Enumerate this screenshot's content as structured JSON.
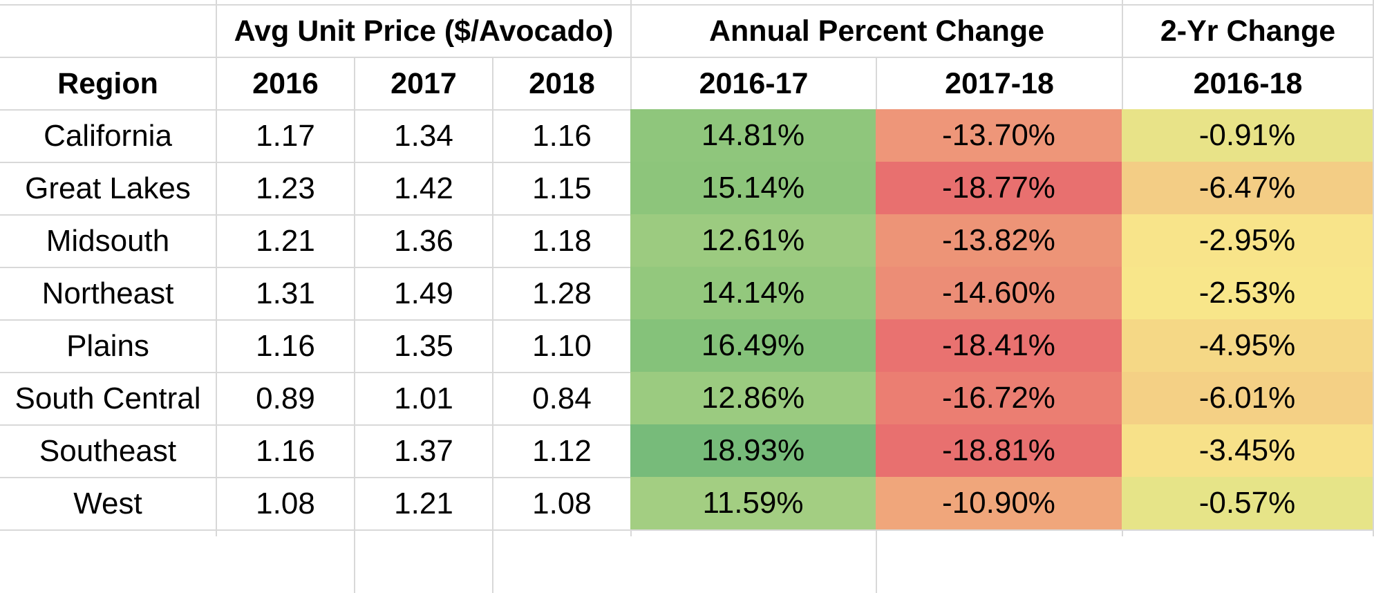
{
  "header_top": {
    "avg_price": "Avg Unit Price ($/Avocado)",
    "annual_change": "Annual Percent Change",
    "two_year_change": "2-Yr Change"
  },
  "header_bottom": {
    "region": "Region",
    "y2016": "2016",
    "y2017": "2017",
    "y2018": "2018",
    "chg_16_17": "2016-17",
    "chg_17_18": "2017-18",
    "chg_16_18": "2016-18"
  },
  "rows": [
    {
      "region": "California",
      "p2016": "1.17",
      "p2017": "1.34",
      "p2018": "1.16",
      "c1617": "14.81%",
      "c1718": "-13.70%",
      "c1618": "-0.91%",
      "bg1617": "#8fc67c",
      "bg1718": "#ee9679",
      "bg1618": "#e8e388"
    },
    {
      "region": "Great Lakes",
      "p2016": "1.23",
      "p2017": "1.42",
      "p2018": "1.15",
      "c1617": "15.14%",
      "c1718": "-18.77%",
      "c1618": "-6.47%",
      "bg1617": "#8dc57b",
      "bg1718": "#e8706f",
      "bg1618": "#f3cd85"
    },
    {
      "region": "Midsouth",
      "p2016": "1.21",
      "p2017": "1.36",
      "p2018": "1.18",
      "c1617": "12.61%",
      "c1718": "-13.82%",
      "c1618": "-2.95%",
      "bg1617": "#9ccb80",
      "bg1718": "#ed9477",
      "bg1618": "#f8e48a"
    },
    {
      "region": "Northeast",
      "p2016": "1.31",
      "p2017": "1.49",
      "p2018": "1.28",
      "c1617": "14.14%",
      "c1718": "-14.60%",
      "c1618": "-2.53%",
      "bg1617": "#93c87d",
      "bg1718": "#ec8d76",
      "bg1618": "#f8e68a"
    },
    {
      "region": "Plains",
      "p2016": "1.16",
      "p2017": "1.35",
      "p2018": "1.10",
      "c1617": "16.49%",
      "c1718": "-18.41%",
      "c1618": "-4.95%",
      "bg1617": "#85c27a",
      "bg1718": "#e97270",
      "bg1618": "#f5d886"
    },
    {
      "region": "South Central",
      "p2016": "0.89",
      "p2017": "1.01",
      "p2018": "0.84",
      "c1617": "12.86%",
      "c1718": "-16.72%",
      "c1618": "-6.01%",
      "bg1617": "#9bcb80",
      "bg1718": "#eb7e72",
      "bg1618": "#f4d085"
    },
    {
      "region": "Southeast",
      "p2016": "1.16",
      "p2017": "1.37",
      "p2018": "1.12",
      "c1617": "18.93%",
      "c1718": "-18.81%",
      "c1618": "-3.45%",
      "bg1617": "#77bb7a",
      "bg1718": "#e8706f",
      "bg1618": "#f7e189"
    },
    {
      "region": "West",
      "p2016": "1.08",
      "p2017": "1.21",
      "p2018": "1.08",
      "c1617": "11.59%",
      "c1718": "-10.90%",
      "c1618": "-0.57%",
      "bg1617": "#a3ce82",
      "bg1718": "#f0a67b",
      "bg1618": "#e6e488"
    }
  ]
}
